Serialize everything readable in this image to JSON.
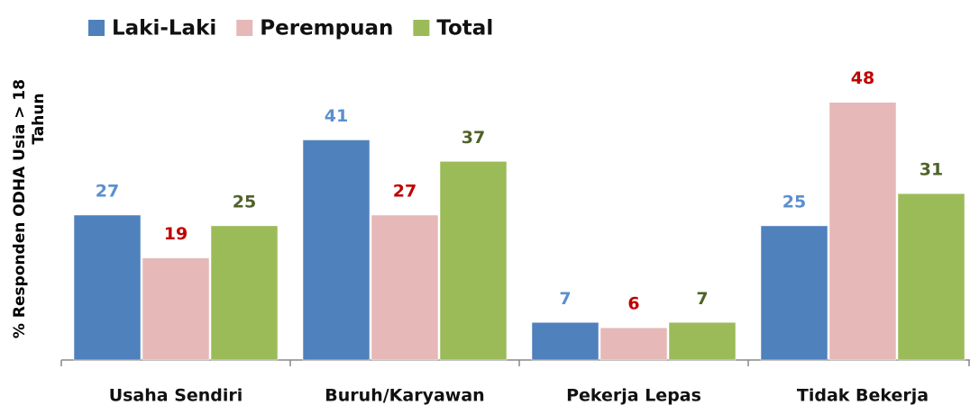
{
  "chart_data": {
    "type": "bar",
    "ylabel": [
      "% Responden ODHA Usia > 18",
      "Tahun"
    ],
    "categories": [
      "Usaha Sendiri",
      "Buruh/Karyawan",
      "Pekerja Lepas",
      "Tidak Bekerja"
    ],
    "series": [
      {
        "name": "Laki-Laki",
        "color": "#4f81bd",
        "label_color": "#5b8fd0",
        "values": [
          27,
          41,
          7,
          25
        ]
      },
      {
        "name": "Perempuan",
        "color": "#e6b8b7",
        "label_color": "#c00000",
        "values": [
          19,
          27,
          6,
          48
        ]
      },
      {
        "name": "Total",
        "color": "#9bbb59",
        "label_color": "#4f6228",
        "values": [
          25,
          37,
          7,
          31
        ]
      }
    ],
    "ylim": [
      0,
      55
    ],
    "legend": "top-left"
  }
}
